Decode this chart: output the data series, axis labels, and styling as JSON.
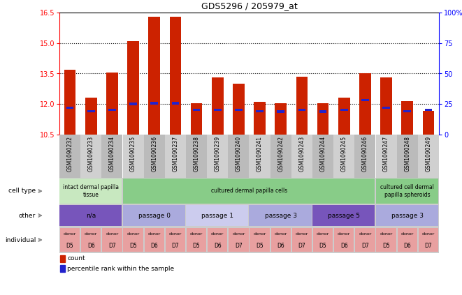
{
  "title": "GDS5296 / 205979_at",
  "samples": [
    "GSM1090232",
    "GSM1090233",
    "GSM1090234",
    "GSM1090235",
    "GSM1090236",
    "GSM1090237",
    "GSM1090238",
    "GSM1090239",
    "GSM1090240",
    "GSM1090241",
    "GSM1090242",
    "GSM1090243",
    "GSM1090244",
    "GSM1090245",
    "GSM1090246",
    "GSM1090247",
    "GSM1090248",
    "GSM1090249"
  ],
  "count_values": [
    13.7,
    12.3,
    13.55,
    15.1,
    16.3,
    16.3,
    12.05,
    13.3,
    13.0,
    12.1,
    12.05,
    13.35,
    12.05,
    12.3,
    13.5,
    13.3,
    12.15,
    11.65
  ],
  "percentile_values": [
    11.82,
    11.65,
    11.72,
    12.0,
    12.05,
    12.05,
    11.72,
    11.72,
    11.72,
    11.65,
    11.62,
    11.72,
    11.62,
    11.72,
    12.2,
    11.82,
    11.65,
    11.72
  ],
  "ymin": 10.5,
  "ymax": 16.5,
  "yticks_left": [
    10.5,
    12.0,
    13.5,
    15.0,
    16.5
  ],
  "yticks_right": [
    0,
    25,
    50,
    75,
    100
  ],
  "bar_color": "#cc2200",
  "pct_color": "#2222cc",
  "cell_type_groups": [
    {
      "label": "intact dermal papilla\ntissue",
      "start": 0,
      "end": 3,
      "color": "#c8e8c0"
    },
    {
      "label": "cultured dermal papilla cells",
      "start": 3,
      "end": 15,
      "color": "#88cc88"
    },
    {
      "label": "cultured cell dermal\npapilla spheroids",
      "start": 15,
      "end": 18,
      "color": "#88cc88"
    }
  ],
  "passage_groups": [
    {
      "label": "n/a",
      "start": 0,
      "end": 3,
      "color": "#7755bb"
    },
    {
      "label": "passage 0",
      "start": 3,
      "end": 6,
      "color": "#aaaadd"
    },
    {
      "label": "passage 1",
      "start": 6,
      "end": 9,
      "color": "#ccccee"
    },
    {
      "label": "passage 3",
      "start": 9,
      "end": 12,
      "color": "#aaaadd"
    },
    {
      "label": "passage 5",
      "start": 12,
      "end": 15,
      "color": "#7755bb"
    },
    {
      "label": "passage 3",
      "start": 15,
      "end": 18,
      "color": "#aaaadd"
    }
  ],
  "donors": [
    "D5",
    "D6",
    "D7",
    "D5",
    "D6",
    "D7",
    "D5",
    "D6",
    "D7",
    "D5",
    "D6",
    "D7",
    "D5",
    "D6",
    "D7",
    "D5",
    "D6",
    "D7"
  ],
  "donor_bg": "#e8a0a0",
  "xlabel_bg_even": "#bbbbbb",
  "xlabel_bg_odd": "#d0d0d0"
}
